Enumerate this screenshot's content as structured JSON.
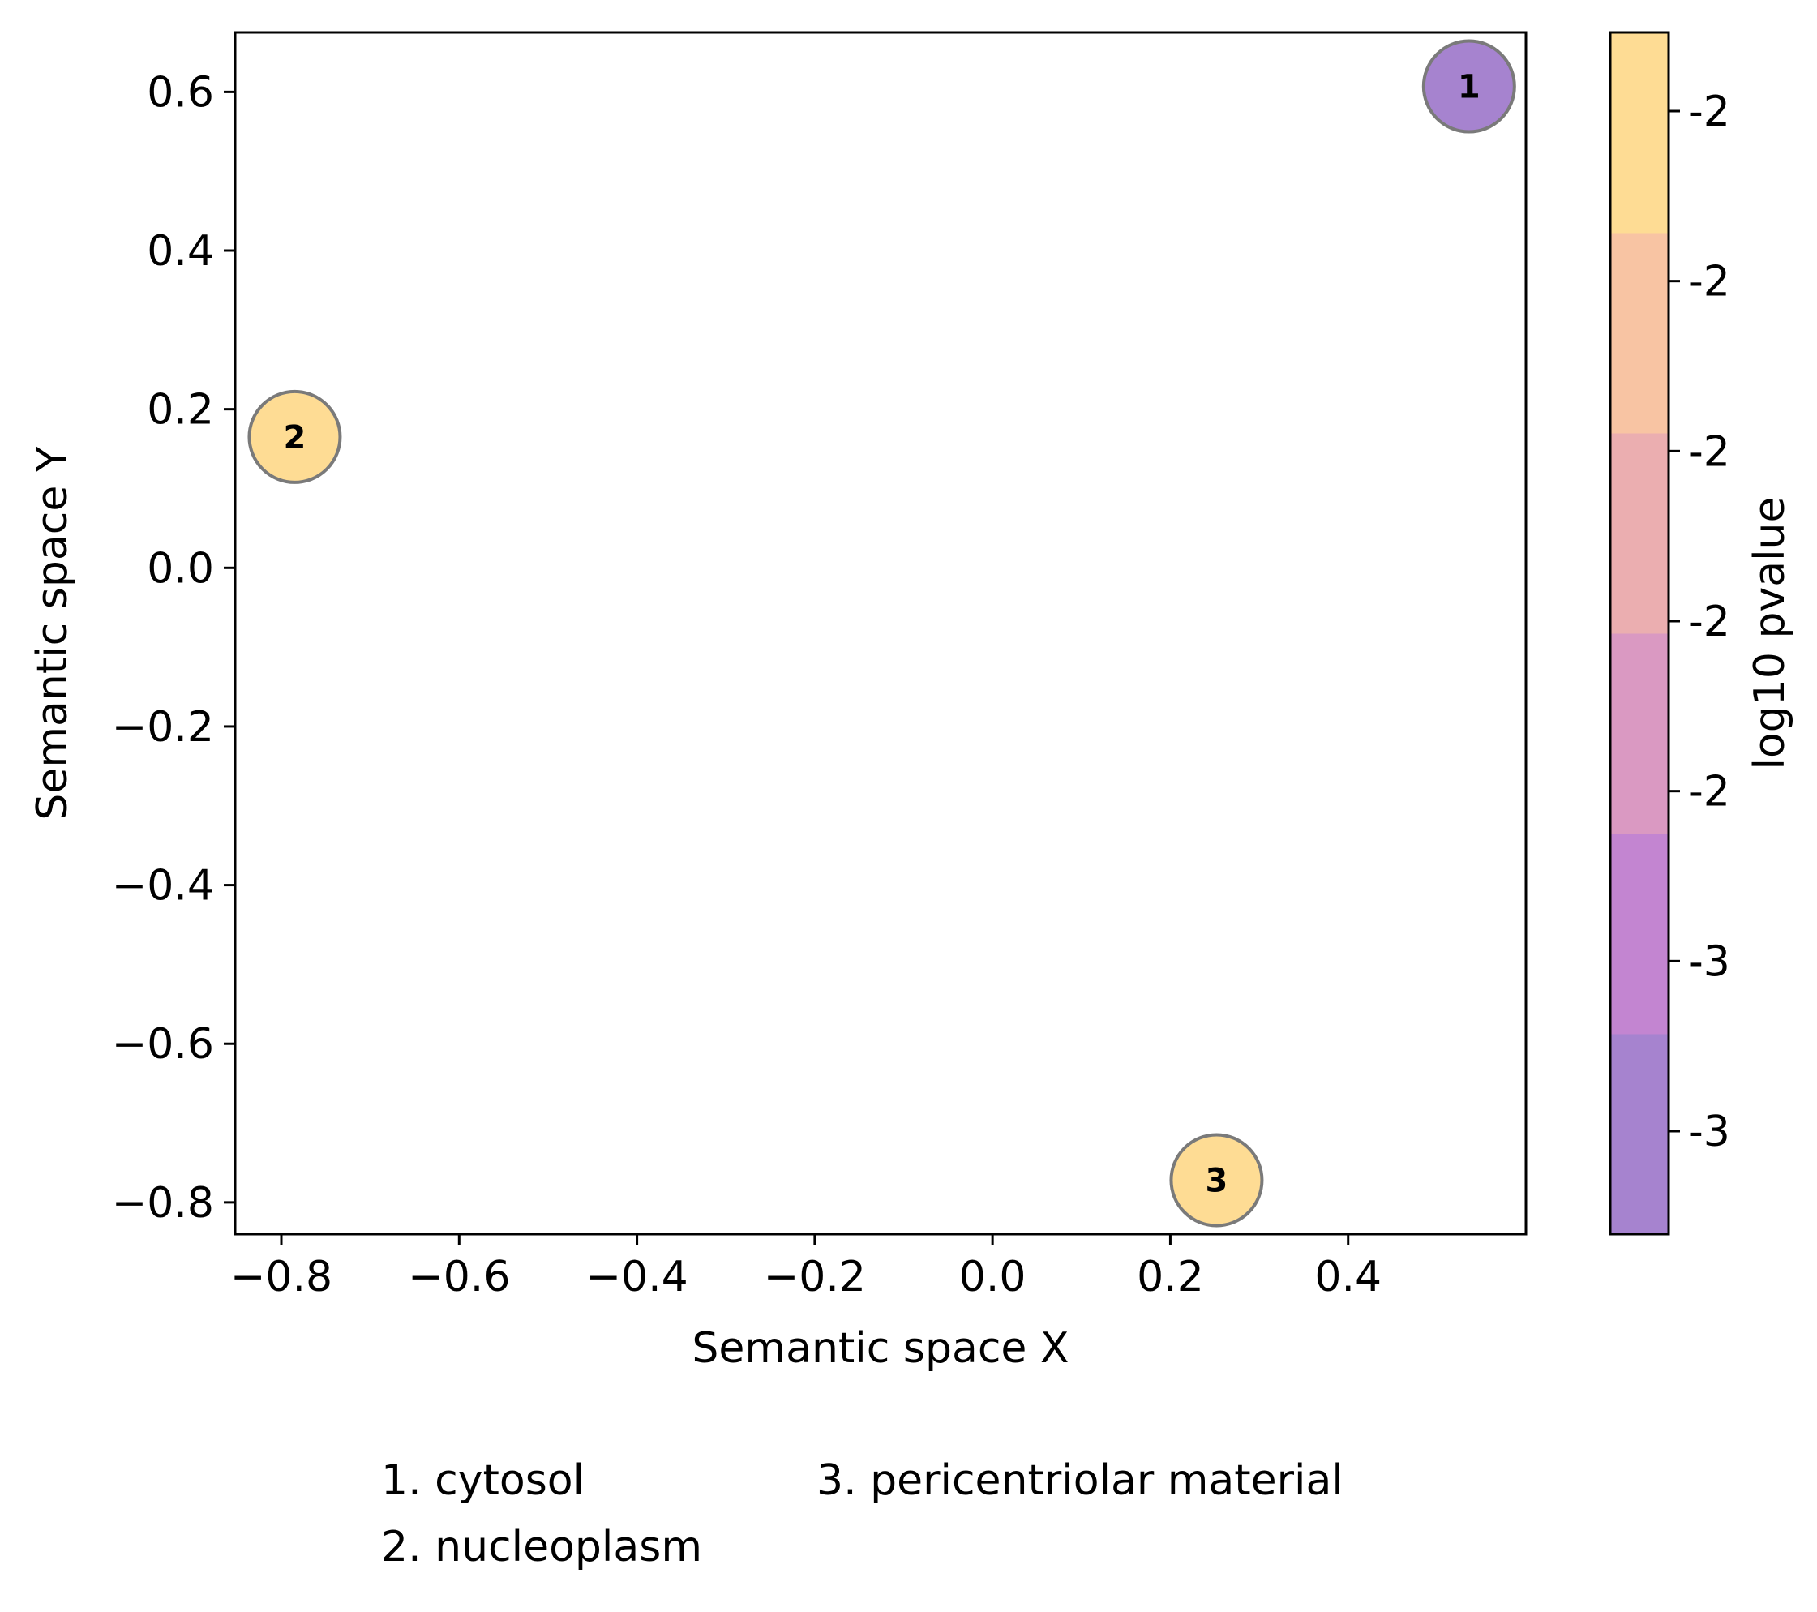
{
  "chart_data": {
    "type": "scatter",
    "xlabel": "Semantic space X",
    "ylabel": "Semantic space Y",
    "xlim": [
      -0.852,
      0.6
    ],
    "ylim": [
      -0.84,
      0.675
    ],
    "xticks": [
      -0.8,
      -0.6,
      -0.4,
      -0.2,
      0.0,
      0.2,
      0.4
    ],
    "xtick_labels": [
      "−0.8",
      "−0.6",
      "−0.4",
      "−0.2",
      "0.0",
      "0.2",
      "0.4"
    ],
    "yticks": [
      0.6,
      0.4,
      0.2,
      0.0,
      -0.2,
      -0.4,
      -0.6,
      -0.8
    ],
    "ytick_labels": [
      "0.6",
      "0.4",
      "0.2",
      "0.0",
      "−0.2",
      "−0.4",
      "−0.6",
      "−0.8"
    ],
    "points": [
      {
        "label": "1",
        "x": 0.536,
        "y": 0.607,
        "color": "#a683cf"
      },
      {
        "label": "2",
        "x": -0.785,
        "y": 0.165,
        "color": "#fedc94"
      },
      {
        "label": "3",
        "x": 0.252,
        "y": -0.772,
        "color": "#fedc94"
      }
    ],
    "colorbar": {
      "label": "log10 pvalue",
      "bands_bottom_to_top": [
        "#a683cf",
        "#c385d1",
        "#da99c2",
        "#ebaeb0",
        "#f8c4a3",
        "#fedc94"
      ],
      "tick_labels_top_to_bottom": [
        "-2",
        "-2",
        "-2",
        "-2",
        "-2",
        "-3",
        "-3"
      ]
    },
    "legend_col1": [
      "1. cytosol",
      "2. nucleoplasm"
    ],
    "legend_col2": [
      "3. pericentriolar material"
    ]
  }
}
